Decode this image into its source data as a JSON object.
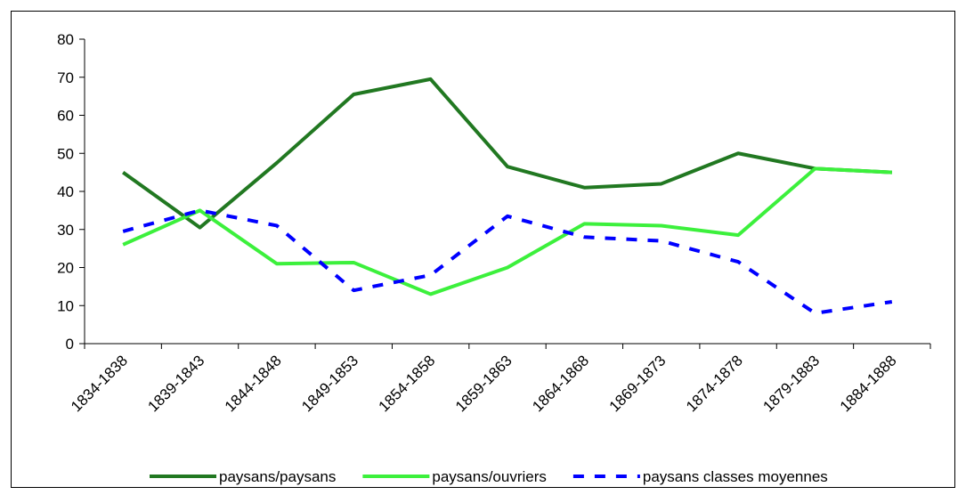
{
  "chart_data": {
    "type": "line",
    "categories": [
      "1834-1838",
      "1839-1843",
      "1844-1848",
      "1849-1853",
      "1854-1858",
      "1859-1863",
      "1864-1868",
      "1869-1873",
      "1874-1878",
      "1879-1883",
      "1884-1888"
    ],
    "series": [
      {
        "name": "paysans/paysans",
        "color": "#217821",
        "dash": false,
        "values": [
          45,
          30.5,
          47.5,
          65.5,
          69.5,
          46.5,
          41,
          42,
          50,
          46,
          45
        ]
      },
      {
        "name": "paysans/ouvriers",
        "color": "#3cf03c",
        "dash": false,
        "values": [
          26,
          35,
          21,
          21.3,
          13,
          20,
          31.5,
          31,
          28.5,
          46,
          45
        ]
      },
      {
        "name": "paysans classes moyennes",
        "color": "#0000ff",
        "dash": true,
        "values": [
          29.5,
          35,
          31,
          14,
          18,
          33.5,
          28,
          27,
          21.5,
          8,
          11
        ]
      }
    ],
    "ylim": [
      0,
      80
    ],
    "yticks": [
      0,
      10,
      20,
      30,
      40,
      50,
      60,
      70,
      80
    ],
    "grid": false,
    "legend": "bottom"
  }
}
